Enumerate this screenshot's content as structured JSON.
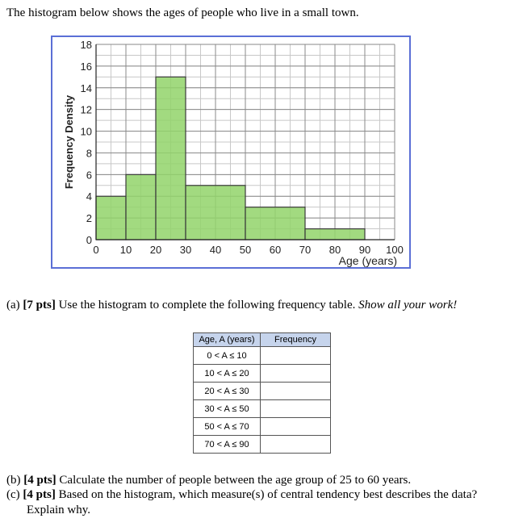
{
  "intro": "The histogram below shows the ages of people who live in a small town.",
  "chart_data": {
    "type": "bar",
    "histogram": true,
    "bins": [
      [
        0,
        10
      ],
      [
        10,
        20
      ],
      [
        20,
        30
      ],
      [
        30,
        50
      ],
      [
        50,
        70
      ],
      [
        70,
        90
      ]
    ],
    "values": [
      4,
      6,
      15,
      5,
      3,
      1
    ],
    "xlabel": "Age (years)",
    "ylabel": "Frequency Density",
    "xticks": [
      0,
      10,
      20,
      30,
      40,
      50,
      60,
      70,
      80,
      90,
      100
    ],
    "yticks": [
      0,
      2,
      4,
      6,
      8,
      10,
      12,
      14,
      16,
      18
    ],
    "xlim": [
      0,
      100
    ],
    "ylim": [
      0,
      18
    ],
    "grid": true,
    "bar_color": "#92d36a"
  },
  "part_a": {
    "label": "(a)",
    "pts": "[7 pts]",
    "text": " Use the histogram to complete the following frequency table.",
    "emphasis": "Show all your work!"
  },
  "table": {
    "headers": [
      "Age, A (years)",
      "Frequency"
    ],
    "rows": [
      "0 < A ≤ 10",
      "10 < A ≤ 20",
      "20 < A ≤ 30",
      "30 < A ≤ 50",
      "50 < A ≤ 70",
      "70 < A ≤ 90"
    ]
  },
  "part_b": {
    "label": "(b)",
    "pts": "[4 pts]",
    "text": " Calculate the number of people between the age group of 25 to 60 years."
  },
  "part_c": {
    "label": "(c)",
    "pts": "[4 pts]",
    "text": " Based on the histogram, which measure(s) of central tendency best describes the data?",
    "text2": "Explain why."
  }
}
